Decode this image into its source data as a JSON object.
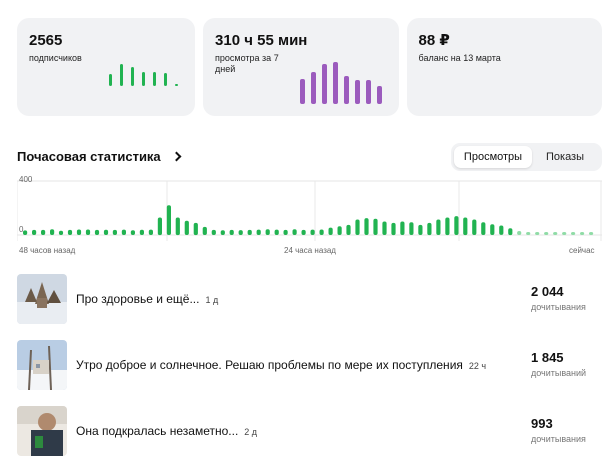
{
  "cards": [
    {
      "value": "2565",
      "label": "подписчиков"
    },
    {
      "value": "310 ч 55 мин",
      "label": "просмотра за 7 дней"
    },
    {
      "value": "88 ₽",
      "label": "баланс на 13 марта"
    }
  ],
  "colors": {
    "green": "#21b351",
    "green_light": "#8fdca6",
    "purple": "#9b5bbd"
  },
  "mini_subscribers": [
    0.55,
    1.0,
    0.85,
    0.65,
    0.65,
    0.6,
    0.1
  ],
  "mini_watch": [
    0.62,
    0.8,
    1.0,
    1.05,
    0.7,
    0.6,
    0.6,
    0.45
  ],
  "section": {
    "title": "Почасовая статистика"
  },
  "toggle": {
    "views": "Просмотры",
    "impressions": "Показы"
  },
  "chart_data": {
    "type": "bar",
    "title": "Почасовая статистика",
    "ylim": [
      0,
      400
    ],
    "y_ticks": [
      "400",
      "0"
    ],
    "x_labels": [
      "48 часов назад",
      "24 часа назад",
      "сейчас"
    ],
    "values": [
      34,
      38,
      38,
      42,
      32,
      38,
      41,
      41,
      38,
      39,
      38,
      40,
      35,
      39,
      40,
      130,
      220,
      130,
      105,
      90,
      60,
      38,
      35,
      38,
      36,
      38,
      40,
      42,
      40,
      38,
      42,
      38,
      40,
      41,
      55,
      65,
      75,
      115,
      125,
      120,
      100,
      90,
      100,
      95,
      75,
      90,
      115,
      130,
      140,
      130,
      115,
      95,
      80,
      70,
      50,
      30,
      22,
      16,
      18,
      16,
      18,
      22,
      20,
      15
    ]
  },
  "posts": [
    {
      "title": "Про здоровье и ещё...",
      "age": "1 д",
      "count": "2 044",
      "sub": "дочитывания"
    },
    {
      "title": "Утро доброе и солнечное. Решаю проблемы по мере их поступления",
      "age": "22 ч",
      "count": "1 845",
      "sub": "дочитываний"
    },
    {
      "title": "Она подкралась незаметно...",
      "age": "2 д",
      "count": "993",
      "sub": "дочитывания"
    }
  ]
}
